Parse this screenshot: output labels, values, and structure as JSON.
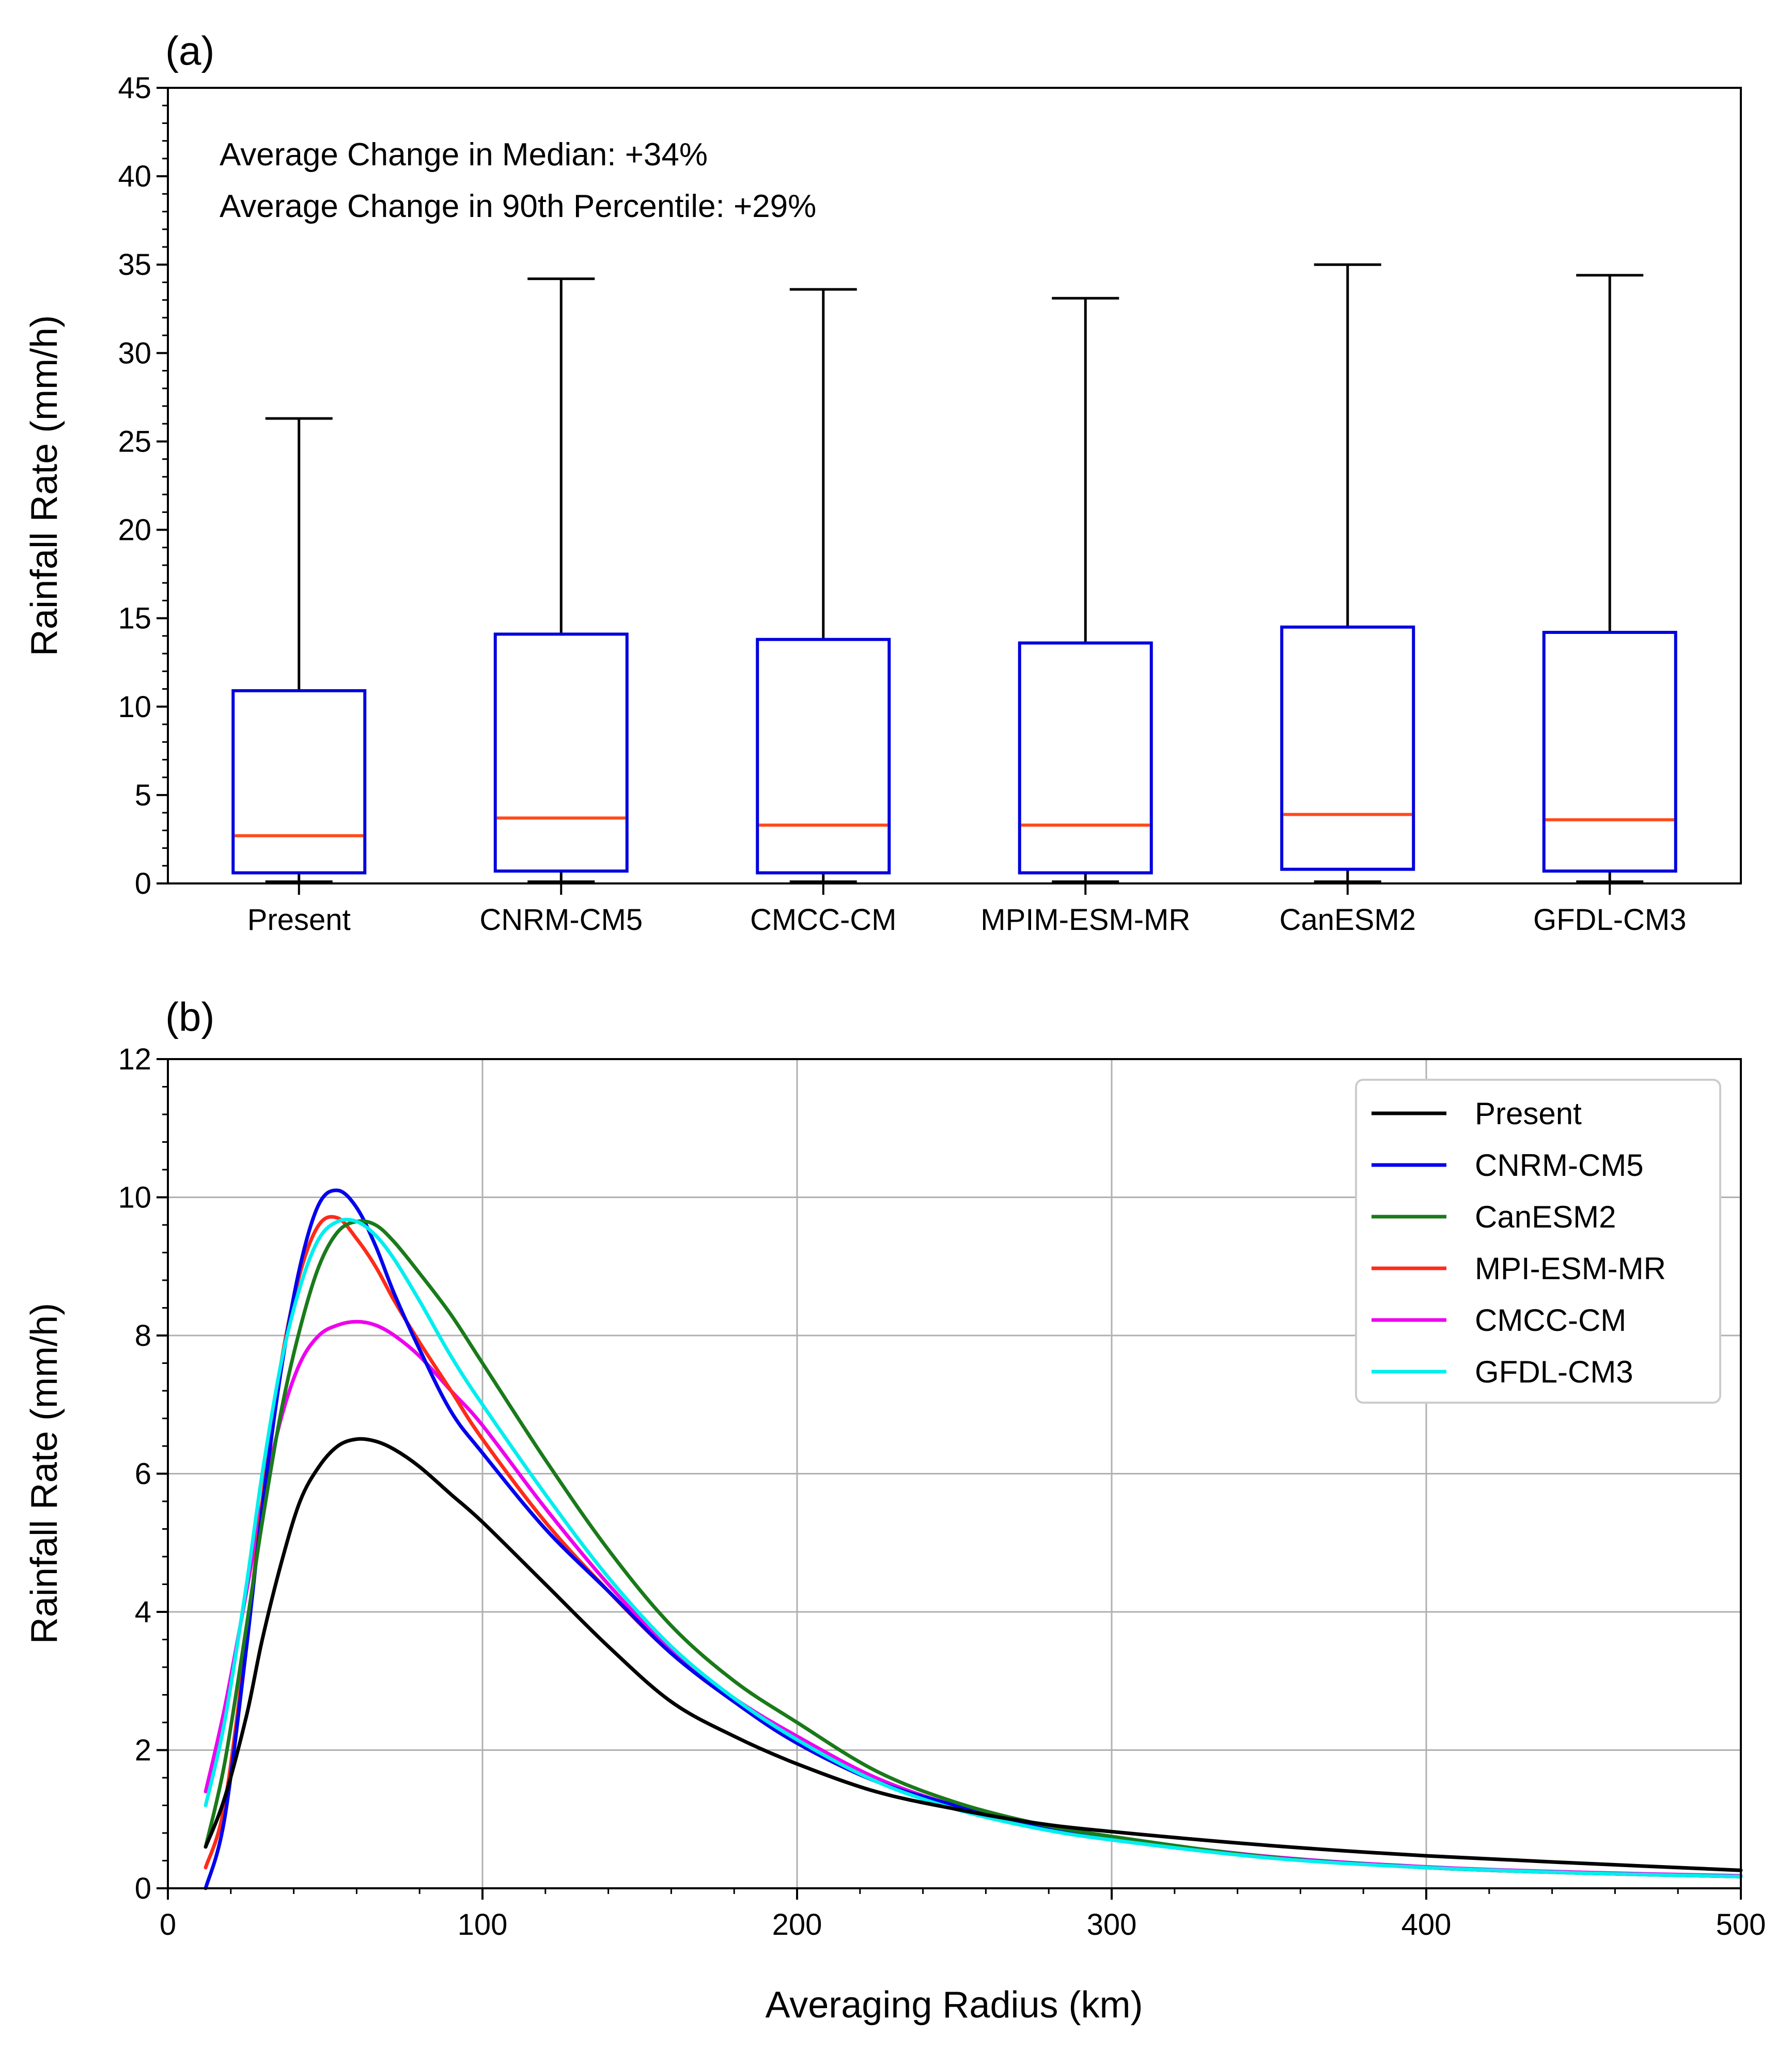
{
  "chart_data": [
    {
      "type": "box",
      "panel_label": "(a)",
      "ylabel": "Rainfall Rate (mm/h)",
      "ylim": [
        0,
        45
      ],
      "yticks": [
        0,
        5,
        10,
        15,
        20,
        25,
        30,
        35,
        40,
        45
      ],
      "annotations": [
        "Average Change in Median: +34%",
        "Average Change in 90th Percentile: +29%"
      ],
      "colors": {
        "box": "#0000dd",
        "median": "#ff4a1a",
        "whisker": "#000000"
      },
      "categories": [
        "Present",
        "CNRM-CM5",
        "CMCC-CM",
        "MPIM-ESM-MR",
        "CanESM2",
        "GFDL-CM3"
      ],
      "boxes": [
        {
          "whisker_low": 0.1,
          "q1": 0.6,
          "median": 2.7,
          "q3": 10.9,
          "whisker_high": 26.3
        },
        {
          "whisker_low": 0.1,
          "q1": 0.7,
          "median": 3.7,
          "q3": 14.1,
          "whisker_high": 34.2
        },
        {
          "whisker_low": 0.1,
          "q1": 0.6,
          "median": 3.3,
          "q3": 13.8,
          "whisker_high": 33.6
        },
        {
          "whisker_low": 0.1,
          "q1": 0.6,
          "median": 3.3,
          "q3": 13.6,
          "whisker_high": 33.1
        },
        {
          "whisker_low": 0.1,
          "q1": 0.8,
          "median": 3.9,
          "q3": 14.5,
          "whisker_high": 35.0
        },
        {
          "whisker_low": 0.1,
          "q1": 0.7,
          "median": 3.6,
          "q3": 14.2,
          "whisker_high": 34.4
        }
      ]
    },
    {
      "type": "line",
      "panel_label": "(b)",
      "xlabel": "Averaging Radius (km)",
      "ylabel": "Rainfall Rate (mm/h)",
      "xlim": [
        0,
        500
      ],
      "ylim": [
        0,
        12
      ],
      "xticks": [
        0,
        100,
        200,
        300,
        400,
        500
      ],
      "yticks": [
        0,
        2,
        4,
        6,
        8,
        10,
        12
      ],
      "grid": true,
      "legend_position": "top-right",
      "series": [
        {
          "name": "Present",
          "color": "#000000",
          "x": [
            12,
            18,
            25,
            30,
            36,
            42,
            48,
            54,
            60,
            66,
            72,
            80,
            90,
            100,
            120,
            140,
            160,
            180,
            200,
            225,
            250,
            275,
            300,
            350,
            400,
            450,
            500
          ],
          "y": [
            0.6,
            1.3,
            2.5,
            3.6,
            4.7,
            5.6,
            6.1,
            6.4,
            6.5,
            6.47,
            6.35,
            6.1,
            5.7,
            5.3,
            4.4,
            3.5,
            2.7,
            2.2,
            1.8,
            1.4,
            1.15,
            0.95,
            0.82,
            0.62,
            0.47,
            0.36,
            0.26
          ]
        },
        {
          "name": "CNRM-CM5",
          "color": "#0000ee",
          "x": [
            12,
            18,
            25,
            30,
            36,
            42,
            48,
            54,
            60,
            66,
            72,
            80,
            90,
            100,
            120,
            140,
            160,
            180,
            200,
            225,
            250,
            275,
            300,
            350,
            400,
            450,
            500
          ],
          "y": [
            0.0,
            1.0,
            3.5,
            5.5,
            7.5,
            9.0,
            9.9,
            10.1,
            9.85,
            9.3,
            8.6,
            7.8,
            6.9,
            6.3,
            5.2,
            4.3,
            3.4,
            2.7,
            2.1,
            1.55,
            1.2,
            0.9,
            0.72,
            0.45,
            0.3,
            0.22,
            0.17
          ]
        },
        {
          "name": "CanESM2",
          "color": "#1a7a1a",
          "x": [
            12,
            18,
            25,
            30,
            36,
            42,
            48,
            54,
            60,
            66,
            72,
            80,
            90,
            100,
            120,
            140,
            160,
            180,
            200,
            225,
            250,
            275,
            300,
            350,
            400,
            450,
            500
          ],
          "y": [
            0.6,
            1.8,
            3.8,
            5.3,
            6.9,
            8.1,
            9.0,
            9.5,
            9.65,
            9.6,
            9.35,
            8.9,
            8.3,
            7.6,
            6.2,
            4.9,
            3.8,
            3.0,
            2.4,
            1.7,
            1.25,
            0.95,
            0.75,
            0.45,
            0.3,
            0.22,
            0.17
          ]
        },
        {
          "name": "MPI-ESM-MR",
          "color": "#ff2a1a",
          "x": [
            12,
            18,
            25,
            30,
            36,
            42,
            48,
            54,
            60,
            66,
            72,
            80,
            90,
            100,
            120,
            140,
            160,
            180,
            200,
            225,
            250,
            275,
            300,
            350,
            400,
            450,
            500
          ],
          "y": [
            0.3,
            1.2,
            3.6,
            5.6,
            7.6,
            8.9,
            9.6,
            9.7,
            9.4,
            9.0,
            8.5,
            7.9,
            7.2,
            6.5,
            5.3,
            4.3,
            3.4,
            2.7,
            2.1,
            1.55,
            1.2,
            0.9,
            0.72,
            0.45,
            0.3,
            0.22,
            0.17
          ]
        },
        {
          "name": "CMCC-CM",
          "color": "#ee00ee",
          "x": [
            12,
            18,
            25,
            30,
            36,
            42,
            48,
            54,
            60,
            66,
            72,
            80,
            90,
            100,
            120,
            140,
            160,
            180,
            200,
            225,
            250,
            275,
            300,
            350,
            400,
            450,
            500
          ],
          "y": [
            1.4,
            2.6,
            4.3,
            5.6,
            6.8,
            7.6,
            8.0,
            8.15,
            8.2,
            8.15,
            8.0,
            7.7,
            7.2,
            6.7,
            5.5,
            4.4,
            3.45,
            2.75,
            2.2,
            1.6,
            1.2,
            0.92,
            0.73,
            0.46,
            0.31,
            0.23,
            0.18
          ]
        },
        {
          "name": "GFDL-CM3",
          "color": "#00eeee",
          "x": [
            12,
            18,
            25,
            30,
            36,
            42,
            48,
            54,
            60,
            66,
            72,
            80,
            90,
            100,
            120,
            140,
            160,
            180,
            200,
            225,
            250,
            275,
            300,
            350,
            400,
            450,
            500
          ],
          "y": [
            1.2,
            2.4,
            4.4,
            6.0,
            7.6,
            8.7,
            9.4,
            9.65,
            9.65,
            9.45,
            9.1,
            8.5,
            7.7,
            7.0,
            5.7,
            4.5,
            3.5,
            2.75,
            2.15,
            1.55,
            1.15,
            0.88,
            0.7,
            0.44,
            0.3,
            0.22,
            0.17
          ]
        }
      ]
    }
  ]
}
